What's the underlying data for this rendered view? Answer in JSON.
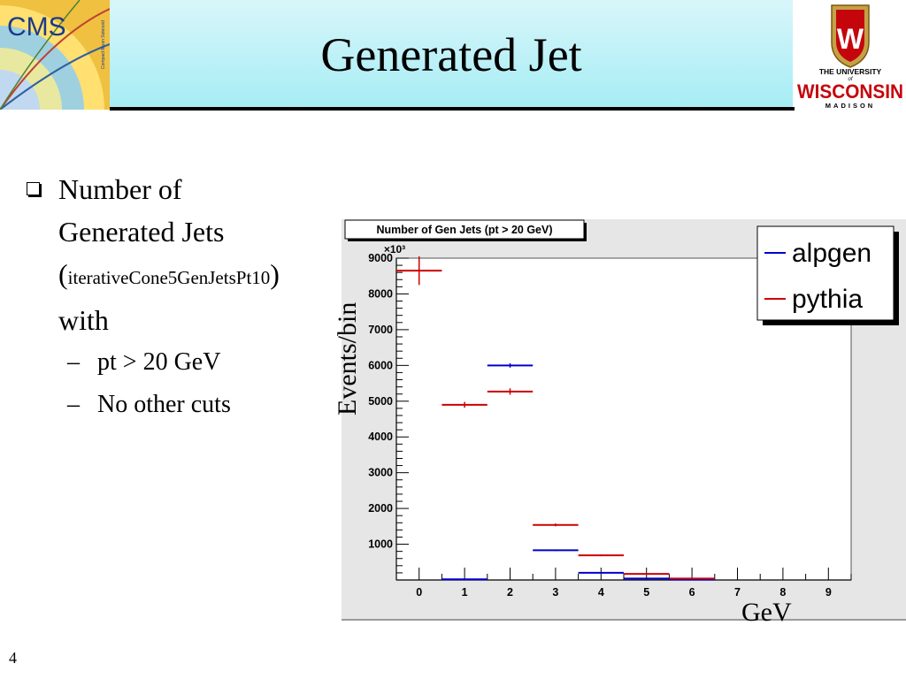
{
  "slide": {
    "title": "Generated Jet",
    "page_number": "4"
  },
  "logos": {
    "cms_text": "CMS",
    "cms_small_text": "Compact Muon Solenoid",
    "uw_line1": "THE UNIVERSITY",
    "uw_line2": "of",
    "uw_line3": "WISCONSIN",
    "uw_line4": "MADISON",
    "uw_shield_letter": "W"
  },
  "bullets": {
    "main_line1": "Number of",
    "main_line2": "Generated Jets",
    "main_paren_open": "(",
    "main_collection": "iterativeCone5GenJetsPt10",
    "main_paren_close": ")",
    "main_line4": "with",
    "sub_items": [
      "pt > 20 GeV",
      "No other cuts"
    ]
  },
  "chart_labels": {
    "ylabel": "Events/bin",
    "xlabel": "GeV"
  },
  "chart_data": {
    "type": "scatter",
    "title": "Number of Gen Jets (pt > 20 GeV)",
    "y_multiplier": "×10³",
    "xlim": [
      -0.5,
      9.5
    ],
    "ylim": [
      0,
      9000
    ],
    "x_ticks": [
      "0",
      "1",
      "2",
      "3",
      "4",
      "5",
      "6",
      "7",
      "8",
      "9"
    ],
    "y_ticks": [
      "1000",
      "2000",
      "3000",
      "4000",
      "5000",
      "6000",
      "7000",
      "8000",
      "9000"
    ],
    "legend_placement": "top-right",
    "series": [
      {
        "name": "alpgen",
        "color": "#0000cc",
        "x": [
          1,
          2,
          3,
          4,
          5,
          6
        ],
        "y": [
          20,
          6000,
          830,
          200,
          40,
          10
        ],
        "yerr": [
          0,
          60,
          20,
          10,
          5,
          3
        ]
      },
      {
        "name": "pythia",
        "color": "#cc0000",
        "x": [
          0,
          1,
          2,
          3,
          4,
          5,
          6
        ],
        "y": [
          8650,
          4900,
          5270,
          1540,
          690,
          170,
          40
        ],
        "yerr": [
          400,
          80,
          90,
          40,
          25,
          10,
          5
        ]
      }
    ]
  }
}
